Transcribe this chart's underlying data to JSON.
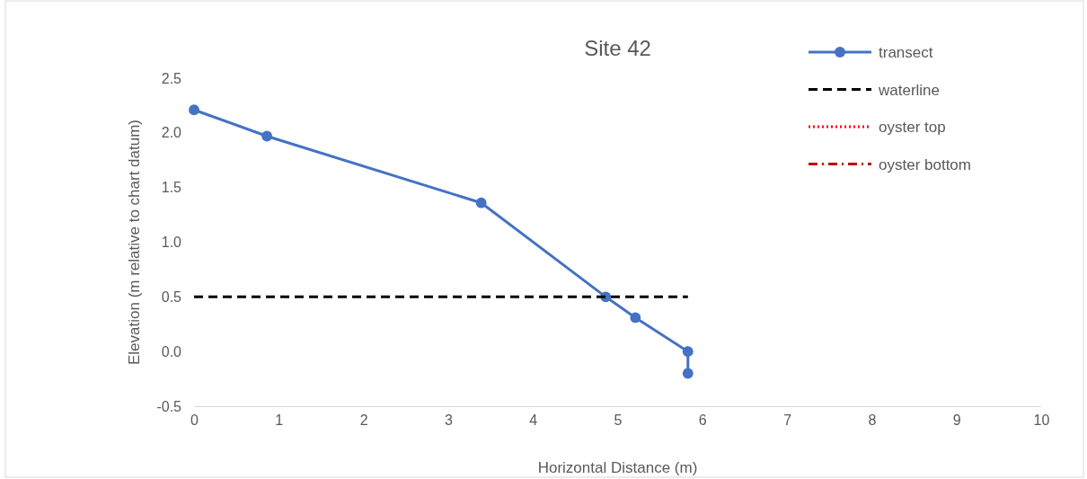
{
  "chart_data": {
    "type": "line",
    "title": "Site 42",
    "xlabel": "Horizontal Distance (m)",
    "ylabel": "Elevation (m relative to chart datum)",
    "xlim": [
      0,
      10
    ],
    "xticks": [
      0,
      1,
      2,
      3,
      4,
      5,
      6,
      7,
      8,
      9,
      10
    ],
    "ylim": [
      -0.5,
      2.5
    ],
    "yticks": [
      {
        "value": -0.5,
        "label": "-0.5"
      },
      {
        "value": 0,
        "label": "0.0"
      },
      {
        "value": 0.5,
        "label": "0.5"
      },
      {
        "value": 1,
        "label": "1.0"
      },
      {
        "value": 1.5,
        "label": "1.5"
      },
      {
        "value": 2,
        "label": "2.0"
      },
      {
        "value": 2.5,
        "label": "2.5"
      }
    ],
    "grid": false,
    "legend": "top right",
    "series": [
      {
        "name": "transect",
        "color": "#4472c4",
        "x": [
          0,
          0.86,
          3.39,
          4.86,
          5.21,
          5.83,
          5.83
        ],
        "values": [
          2.21,
          1.97,
          1.36,
          0.5,
          0.31,
          0,
          -0.2
        ],
        "marker": "circle",
        "line_style": "solid"
      },
      {
        "name": "waterline",
        "color": "#000000",
        "x": [
          0,
          5.83
        ],
        "values": [
          0.5,
          0.5
        ],
        "marker": "none",
        "line_style": "dashed"
      },
      {
        "name": "oyster top",
        "color": "#ff0000",
        "marker": "none",
        "line_style": "dotted"
      },
      {
        "name": "oyster bottom",
        "color": "#c00000",
        "marker": "none",
        "line_style": "dashdot"
      }
    ]
  }
}
